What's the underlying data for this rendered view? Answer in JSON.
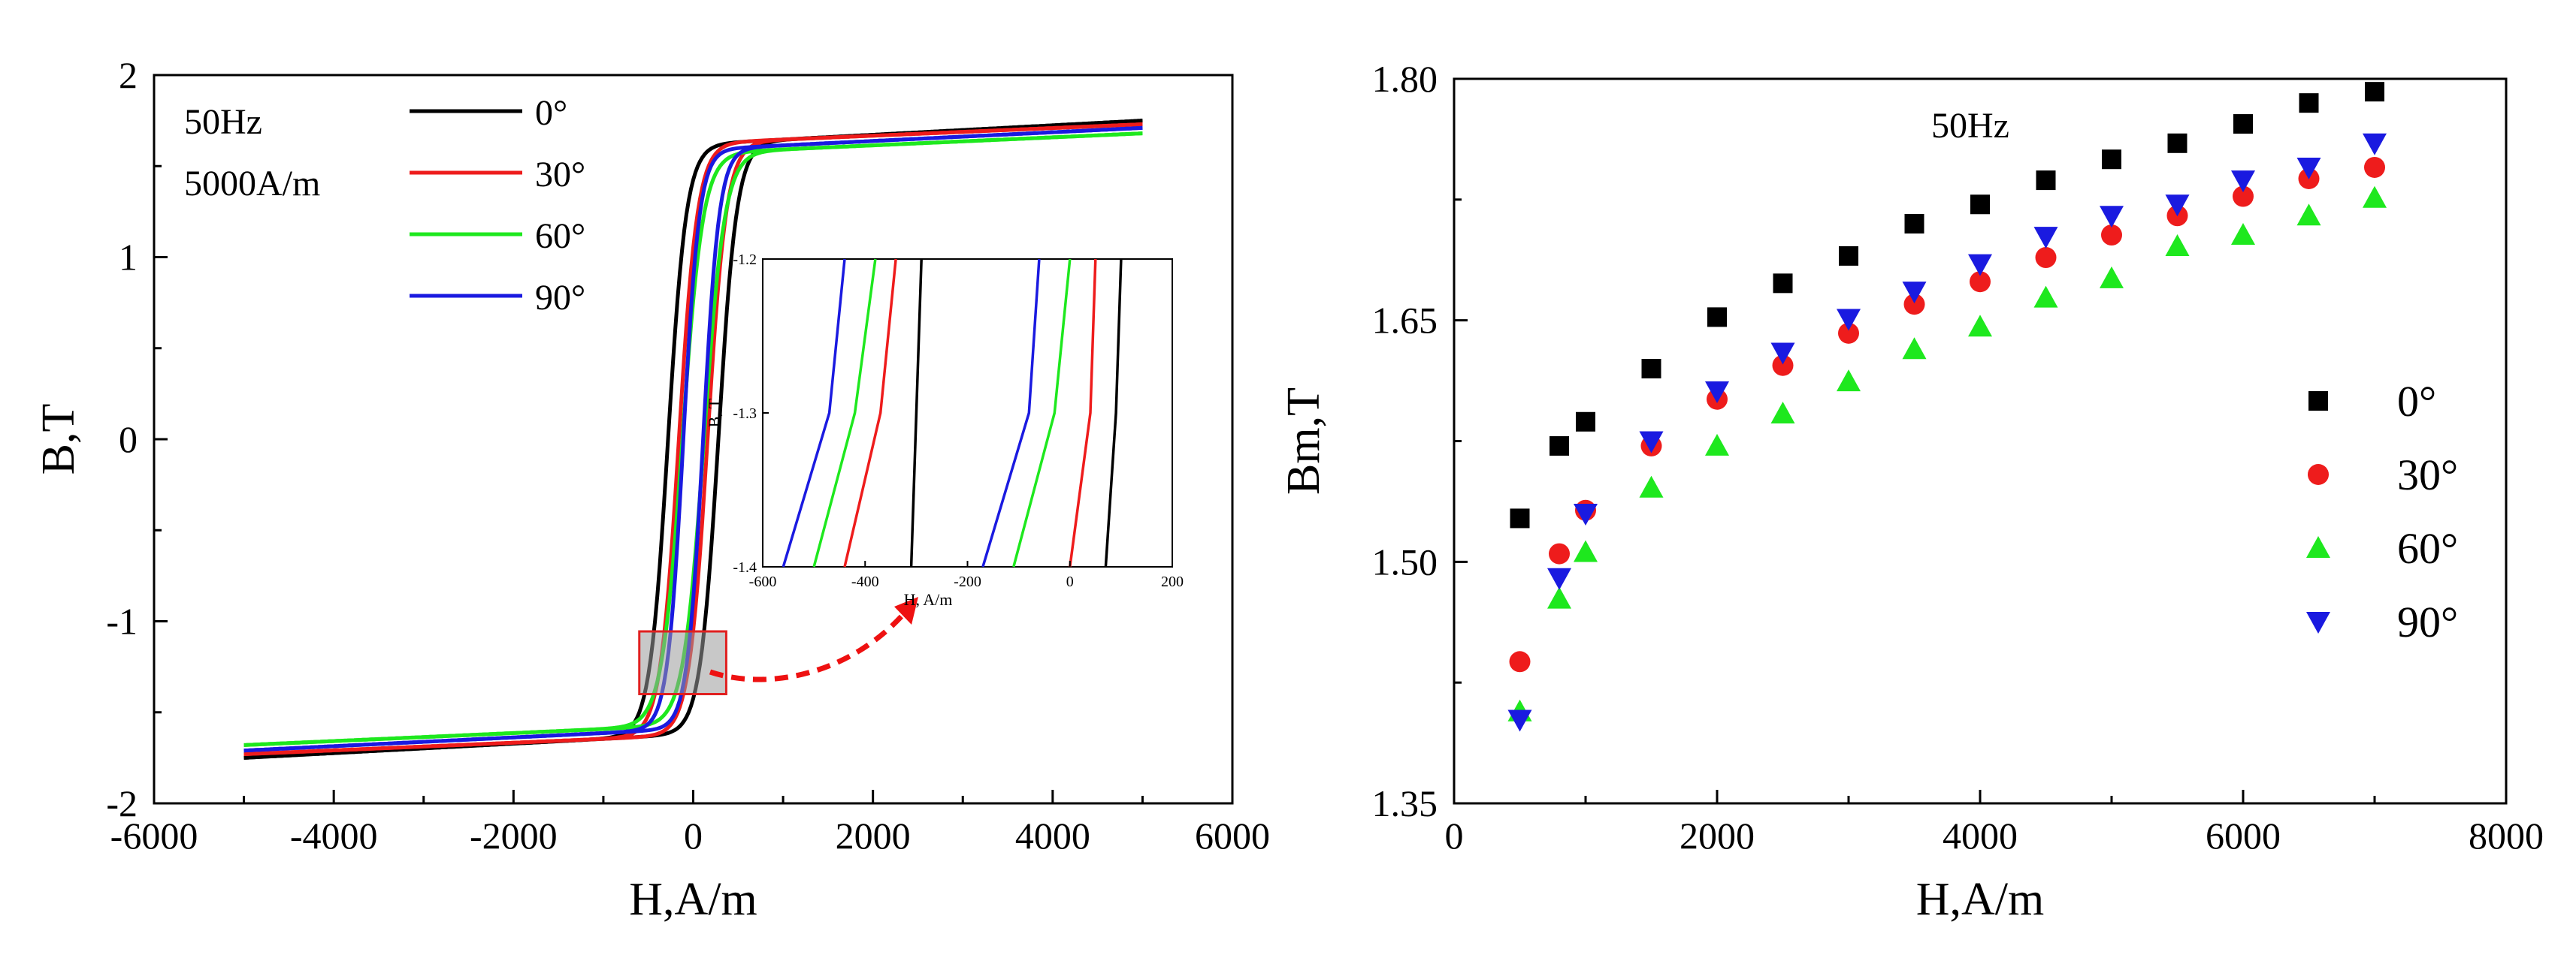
{
  "chart_data": [
    {
      "type": "line",
      "panel": "left",
      "title": "",
      "xlabel": "H,A/m",
      "ylabel": "B,T",
      "xlim": [
        -6000,
        6000
      ],
      "ylim": [
        -2,
        2
      ],
      "xticks": [
        "-6000",
        "-4000",
        "-2000",
        "0",
        "2000",
        "4000",
        "6000"
      ],
      "yticks": [
        "-2",
        "-1",
        "0",
        "1",
        "2"
      ],
      "annotations": [
        "50Hz",
        "5000A/m"
      ],
      "legend_position": "top-left",
      "series": [
        {
          "name": "0°",
          "color": "#000000",
          "Bmax": 1.75,
          "coercive_H": 280,
          "knee_H": 250,
          "knee_B": 1.52,
          "low_slope": 0.026
        },
        {
          "name": "30°",
          "color": "#ee1c1c",
          "Bmax": 1.73,
          "coercive_H": 160,
          "knee_H": 380,
          "knee_B": 1.54,
          "low_slope": 0.021
        },
        {
          "name": "60°",
          "color": "#1ee81e",
          "Bmax": 1.68,
          "coercive_H": 120,
          "knee_H": 470,
          "knee_B": 1.5,
          "low_slope": 0.022
        },
        {
          "name": "90°",
          "color": "#1a1ae0",
          "Bmax": 1.71,
          "coercive_H": 110,
          "knee_H": 350,
          "knee_B": 1.52,
          "low_slope": 0.024
        }
      ],
      "zoom_box": {
        "x": [
          -600,
          200
        ],
        "y": [
          -1.4,
          -1.2
        ]
      }
    },
    {
      "type": "line",
      "panel": "inset",
      "xlabel": "H, A/m",
      "ylabel": "B, T",
      "xlim": [
        -600,
        200
      ],
      "ylim": [
        -1.4,
        -1.2
      ],
      "xticks": [
        "-600",
        "-400",
        "-200",
        "0",
        "200"
      ],
      "yticks": [
        "-1.2",
        "-1.3",
        "-1.4"
      ],
      "series": [
        {
          "name": "0°",
          "color": "#000000",
          "left_branch": [
            [
              -310,
              -1.4
            ],
            [
              -300,
              -1.3
            ],
            [
              -290,
              -1.2
            ]
          ],
          "right_branch": [
            [
              70,
              -1.4
            ],
            [
              90,
              -1.3
            ],
            [
              100,
              -1.2
            ]
          ]
        },
        {
          "name": "30°",
          "color": "#ee1c1c",
          "left_branch": [
            [
              -440,
              -1.4
            ],
            [
              -370,
              -1.3
            ],
            [
              -340,
              -1.2
            ]
          ],
          "right_branch": [
            [
              0,
              -1.4
            ],
            [
              40,
              -1.3
            ],
            [
              50,
              -1.2
            ]
          ]
        },
        {
          "name": "60°",
          "color": "#1ee81e",
          "left_branch": [
            [
              -500,
              -1.4
            ],
            [
              -420,
              -1.3
            ],
            [
              -380,
              -1.2
            ]
          ],
          "right_branch": [
            [
              -110,
              -1.4
            ],
            [
              -30,
              -1.3
            ],
            [
              0,
              -1.2
            ]
          ]
        },
        {
          "name": "90°",
          "color": "#1a1ae0",
          "left_branch": [
            [
              -560,
              -1.4
            ],
            [
              -470,
              -1.3
            ],
            [
              -440,
              -1.2
            ]
          ],
          "right_branch": [
            [
              -170,
              -1.4
            ],
            [
              -80,
              -1.3
            ],
            [
              -60,
              -1.2
            ]
          ]
        }
      ]
    },
    {
      "type": "scatter",
      "panel": "right",
      "title": "",
      "xlabel": "H,A/m",
      "ylabel": "Bm,T",
      "xlim": [
        0,
        8000
      ],
      "ylim": [
        1.35,
        1.8
      ],
      "xticks": [
        "0",
        "2000",
        "4000",
        "6000",
        "8000"
      ],
      "yticks": [
        "1.35",
        "1.50",
        "1.65",
        "1.80"
      ],
      "annotations": [
        "50Hz"
      ],
      "legend_position": "right",
      "x": [
        500,
        800,
        1000,
        1500,
        2000,
        2500,
        3000,
        3500,
        4000,
        4500,
        5000,
        5500,
        6000,
        6500,
        7000
      ],
      "series": [
        {
          "name": "0°",
          "marker": "square",
          "color": "#000000",
          "values": [
            1.527,
            1.572,
            1.587,
            1.62,
            1.652,
            1.673,
            1.69,
            1.71,
            1.722,
            1.737,
            1.75,
            1.76,
            1.772,
            1.785,
            1.792
          ]
        },
        {
          "name": "30°",
          "marker": "circle",
          "color": "#ee1c1c",
          "values": [
            1.438,
            1.505,
            1.532,
            1.572,
            1.601,
            1.622,
            1.642,
            1.66,
            1.674,
            1.689,
            1.703,
            1.715,
            1.727,
            1.738,
            1.745
          ]
        },
        {
          "name": "60°",
          "marker": "triangle-up",
          "color": "#1ee81e",
          "values": [
            1.407,
            1.477,
            1.506,
            1.546,
            1.572,
            1.592,
            1.612,
            1.632,
            1.646,
            1.664,
            1.676,
            1.696,
            1.703,
            1.715,
            1.726
          ]
        },
        {
          "name": "90°",
          "marker": "triangle-down",
          "color": "#1a1ae0",
          "values": [
            1.402,
            1.49,
            1.53,
            1.575,
            1.606,
            1.63,
            1.651,
            1.668,
            1.685,
            1.702,
            1.715,
            1.722,
            1.737,
            1.745,
            1.76
          ]
        }
      ]
    }
  ]
}
